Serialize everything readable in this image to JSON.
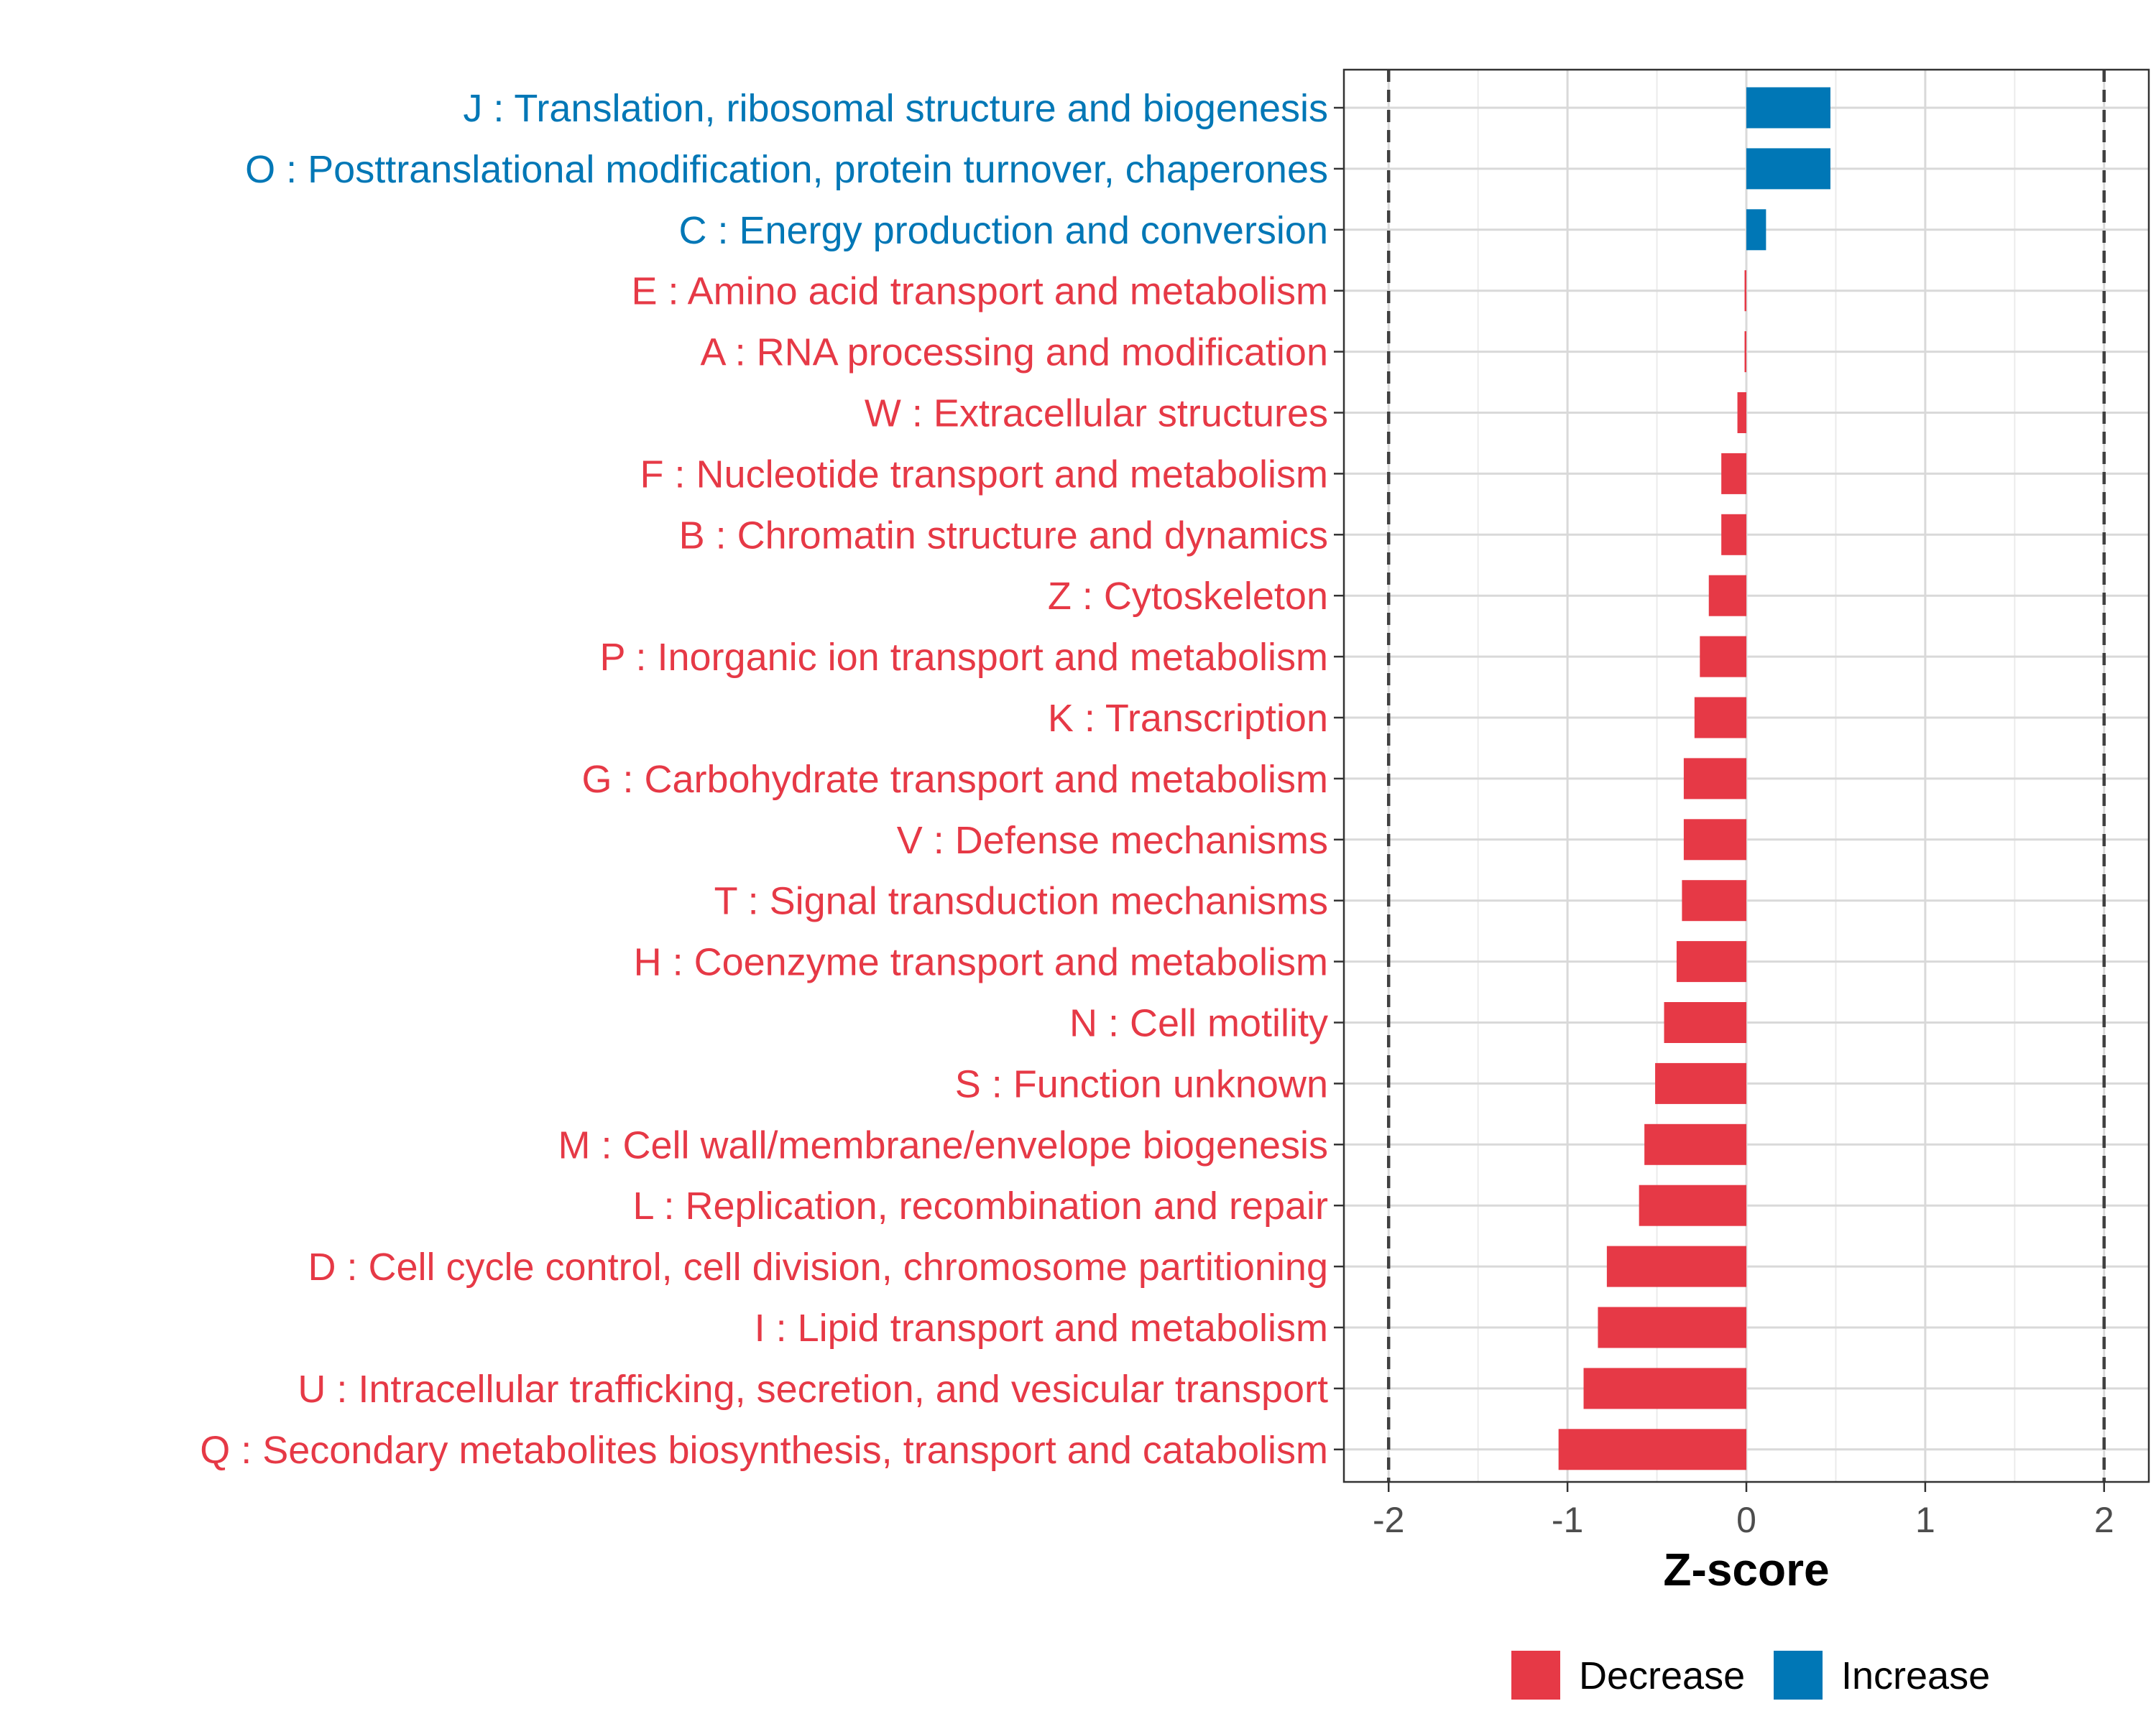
{
  "chart_data": {
    "type": "bar",
    "orientation": "horizontal",
    "xlabel": "Z-score",
    "xlim": [
      -2.25,
      2.25
    ],
    "xticks": [
      -2,
      -1,
      0,
      1,
      2
    ],
    "xtick_labels": [
      "-2",
      "-1",
      "0",
      "1",
      "2"
    ],
    "reference_lines": [
      -2,
      2
    ],
    "grid": true,
    "legend_position": "bottom",
    "colors": {
      "Decrease": "#e63946",
      "Increase": "#0077b6"
    },
    "legend": [
      {
        "label": "Decrease",
        "color": "#e63946"
      },
      {
        "label": "Increase",
        "color": "#0077b6"
      }
    ],
    "categories": [
      {
        "label": "J : Translation, ribosomal structure and biogenesis",
        "value": 0.47,
        "group": "Increase"
      },
      {
        "label": "O : Posttranslational modification, protein turnover, chaperones",
        "value": 0.47,
        "group": "Increase"
      },
      {
        "label": "C : Energy production and conversion",
        "value": 0.11,
        "group": "Increase"
      },
      {
        "label": "E : Amino acid transport and metabolism",
        "value": -0.01,
        "group": "Decrease"
      },
      {
        "label": "A : RNA processing and modification",
        "value": -0.01,
        "group": "Decrease"
      },
      {
        "label": "W : Extracellular structures",
        "value": -0.05,
        "group": "Decrease"
      },
      {
        "label": "F : Nucleotide transport and metabolism",
        "value": -0.14,
        "group": "Decrease"
      },
      {
        "label": "B : Chromatin structure and dynamics",
        "value": -0.14,
        "group": "Decrease"
      },
      {
        "label": "Z : Cytoskeleton",
        "value": -0.21,
        "group": "Decrease"
      },
      {
        "label": "P : Inorganic ion transport and metabolism",
        "value": -0.26,
        "group": "Decrease"
      },
      {
        "label": "K : Transcription",
        "value": -0.29,
        "group": "Decrease"
      },
      {
        "label": "G : Carbohydrate transport and metabolism",
        "value": -0.35,
        "group": "Decrease"
      },
      {
        "label": "V : Defense mechanisms",
        "value": -0.35,
        "group": "Decrease"
      },
      {
        "label": "T : Signal transduction mechanisms",
        "value": -0.36,
        "group": "Decrease"
      },
      {
        "label": "H : Coenzyme transport and metabolism",
        "value": -0.39,
        "group": "Decrease"
      },
      {
        "label": "N : Cell motility",
        "value": -0.46,
        "group": "Decrease"
      },
      {
        "label": "S : Function unknown",
        "value": -0.51,
        "group": "Decrease"
      },
      {
        "label": "M : Cell wall/membrane/envelope biogenesis",
        "value": -0.57,
        "group": "Decrease"
      },
      {
        "label": "L : Replication, recombination and repair",
        "value": -0.6,
        "group": "Decrease"
      },
      {
        "label": "D : Cell cycle control, cell division, chromosome partitioning",
        "value": -0.78,
        "group": "Decrease"
      },
      {
        "label": "I : Lipid transport and metabolism",
        "value": -0.83,
        "group": "Decrease"
      },
      {
        "label": "U : Intracellular trafficking, secretion, and vesicular transport",
        "value": -0.91,
        "group": "Decrease"
      },
      {
        "label": "Q : Secondary metabolites biosynthesis, transport and catabolism",
        "value": -1.05,
        "group": "Decrease"
      }
    ]
  }
}
